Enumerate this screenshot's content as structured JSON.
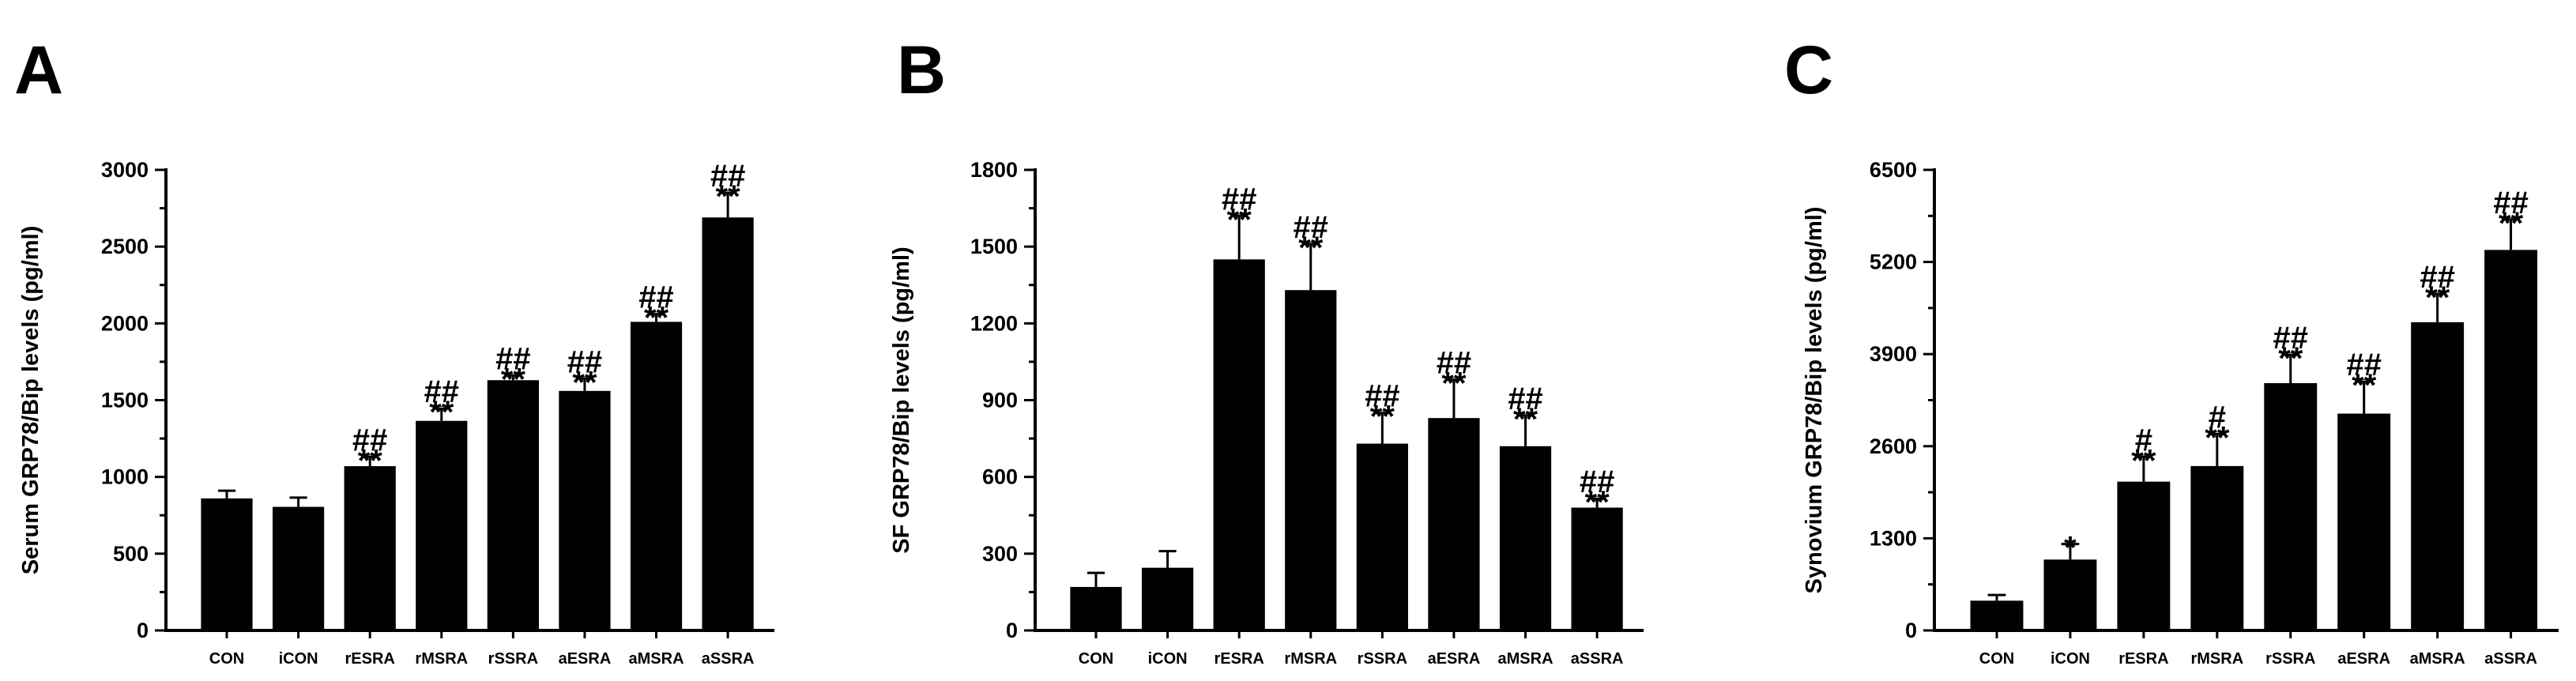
{
  "chart_data": [
    {
      "type": "bar",
      "panel": "A",
      "ylabel": "Serum GRP78/Bip levels (pg/ml)",
      "ylim": [
        0,
        3000
      ],
      "yticks": [
        0,
        500,
        1000,
        1500,
        2000,
        2500,
        3000
      ],
      "categories": [
        "CON",
        "iCON",
        "rESRA",
        "rMSRA",
        "rSSRA",
        "aESRA",
        "aMSRA",
        "aSSRA"
      ],
      "values": [
        860,
        805,
        1070,
        1365,
        1630,
        1560,
        2010,
        2690
      ],
      "errors": [
        50,
        60,
        60,
        80,
        30,
        80,
        50,
        160
      ],
      "sig_hash": [
        "",
        "",
        "##",
        "##",
        "##",
        "##",
        "##",
        "##"
      ],
      "sig_star": [
        "",
        "",
        "**",
        "**",
        "**",
        "**",
        "**",
        "**"
      ],
      "grid": false
    },
    {
      "type": "bar",
      "panel": "B",
      "ylabel": "SF GRP78/Bip levels (pg/ml)",
      "ylim": [
        0,
        1800
      ],
      "yticks": [
        0,
        300,
        600,
        900,
        1200,
        1500,
        1800
      ],
      "categories": [
        "CON",
        "iCON",
        "rESRA",
        "rMSRA",
        "rSSRA",
        "aESRA",
        "aMSRA",
        "aSSRA"
      ],
      "values": [
        170,
        245,
        1450,
        1330,
        730,
        830,
        720,
        480
      ],
      "errors": [
        55,
        65,
        170,
        180,
        120,
        150,
        120,
        35
      ],
      "sig_hash": [
        "",
        "",
        "##",
        "##",
        "##",
        "##",
        "##",
        "##"
      ],
      "sig_star": [
        "",
        "",
        "**",
        "**",
        "**",
        "**",
        "**",
        "**"
      ],
      "grid": false
    },
    {
      "type": "bar",
      "panel": "C",
      "ylabel": "Synovium GRP78/Bip levels (pg/ml)",
      "ylim": [
        0,
        6500
      ],
      "yticks": [
        0,
        1300,
        2600,
        3900,
        5200,
        6500
      ],
      "categories": [
        "CON",
        "iCON",
        "rESRA",
        "rMSRA",
        "rSSRA",
        "aESRA",
        "aMSRA",
        "aSSRA"
      ],
      "values": [
        420,
        1000,
        2100,
        2320,
        3490,
        3060,
        4350,
        5370
      ],
      "errors": [
        80,
        220,
        350,
        450,
        400,
        450,
        400,
        430
      ],
      "sig_hash": [
        "",
        "",
        "#",
        "#",
        "##",
        "##",
        "##",
        "##"
      ],
      "sig_star": [
        "",
        "*",
        "**",
        "**",
        "**",
        "**",
        "**",
        "**"
      ],
      "grid": false
    }
  ]
}
